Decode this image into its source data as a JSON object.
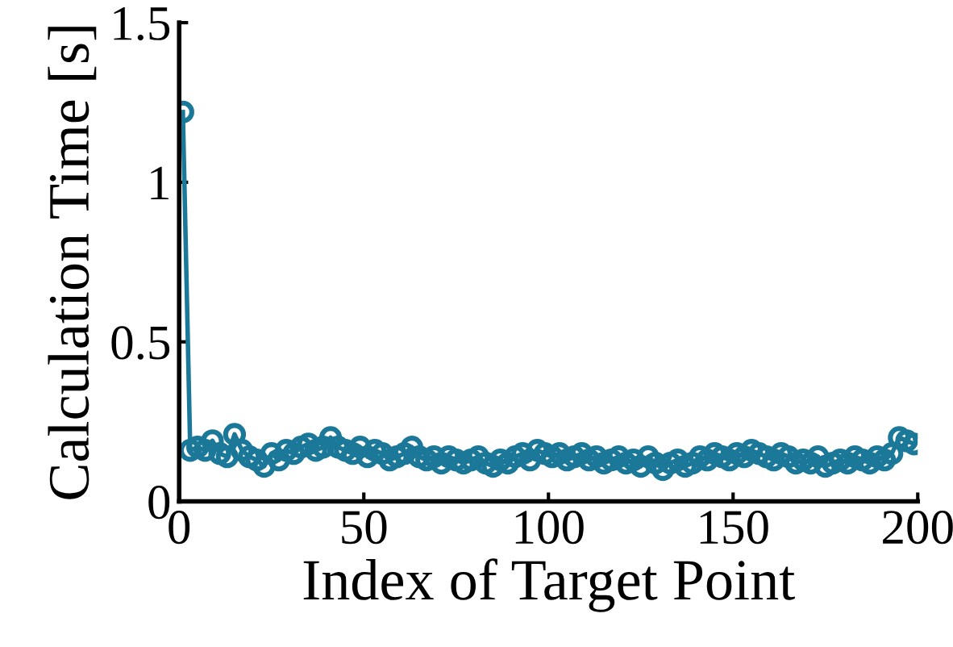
{
  "chart_data": {
    "type": "line",
    "xlabel": "Index of Target Point",
    "ylabel": "Calculation Time [s]",
    "xlim": [
      0,
      200
    ],
    "xticks": [
      0,
      50,
      100,
      150,
      200
    ],
    "ylim": [
      0,
      1.5
    ],
    "yticks": [
      0,
      0.5,
      1,
      1.5
    ],
    "marker": "circle",
    "line_style": "solid",
    "grid": false,
    "legend": false,
    "series": [
      {
        "color": "#1b7899",
        "x": [
          1,
          3,
          5,
          7,
          9,
          11,
          13,
          15,
          17,
          19,
          21,
          23,
          25,
          27,
          29,
          31,
          33,
          35,
          37,
          39,
          41,
          43,
          45,
          47,
          49,
          51,
          53,
          55,
          57,
          59,
          61,
          63,
          65,
          67,
          69,
          71,
          73,
          75,
          77,
          79,
          81,
          83,
          85,
          87,
          89,
          91,
          93,
          95,
          97,
          99,
          101,
          103,
          105,
          107,
          109,
          111,
          113,
          115,
          117,
          119,
          121,
          123,
          125,
          127,
          129,
          131,
          133,
          135,
          137,
          139,
          141,
          143,
          145,
          147,
          149,
          151,
          153,
          155,
          157,
          159,
          161,
          163,
          165,
          167,
          169,
          171,
          173,
          175,
          177,
          179,
          181,
          183,
          185,
          187,
          189,
          191,
          193,
          195,
          197,
          199
        ],
        "values": [
          1.22,
          0.16,
          0.17,
          0.16,
          0.19,
          0.15,
          0.14,
          0.21,
          0.16,
          0.14,
          0.13,
          0.11,
          0.15,
          0.13,
          0.16,
          0.15,
          0.17,
          0.18,
          0.16,
          0.17,
          0.2,
          0.17,
          0.16,
          0.15,
          0.17,
          0.14,
          0.16,
          0.15,
          0.13,
          0.14,
          0.15,
          0.17,
          0.14,
          0.13,
          0.14,
          0.12,
          0.14,
          0.13,
          0.12,
          0.13,
          0.14,
          0.12,
          0.11,
          0.13,
          0.12,
          0.14,
          0.15,
          0.13,
          0.16,
          0.15,
          0.14,
          0.15,
          0.13,
          0.14,
          0.15,
          0.13,
          0.14,
          0.12,
          0.13,
          0.14,
          0.12,
          0.13,
          0.11,
          0.14,
          0.12,
          0.1,
          0.12,
          0.13,
          0.11,
          0.12,
          0.14,
          0.13,
          0.15,
          0.14,
          0.13,
          0.15,
          0.14,
          0.16,
          0.15,
          0.14,
          0.13,
          0.15,
          0.14,
          0.12,
          0.13,
          0.12,
          0.14,
          0.11,
          0.12,
          0.13,
          0.12,
          0.14,
          0.13,
          0.12,
          0.14,
          0.13,
          0.15,
          0.2,
          0.19,
          0.18
        ]
      }
    ]
  }
}
